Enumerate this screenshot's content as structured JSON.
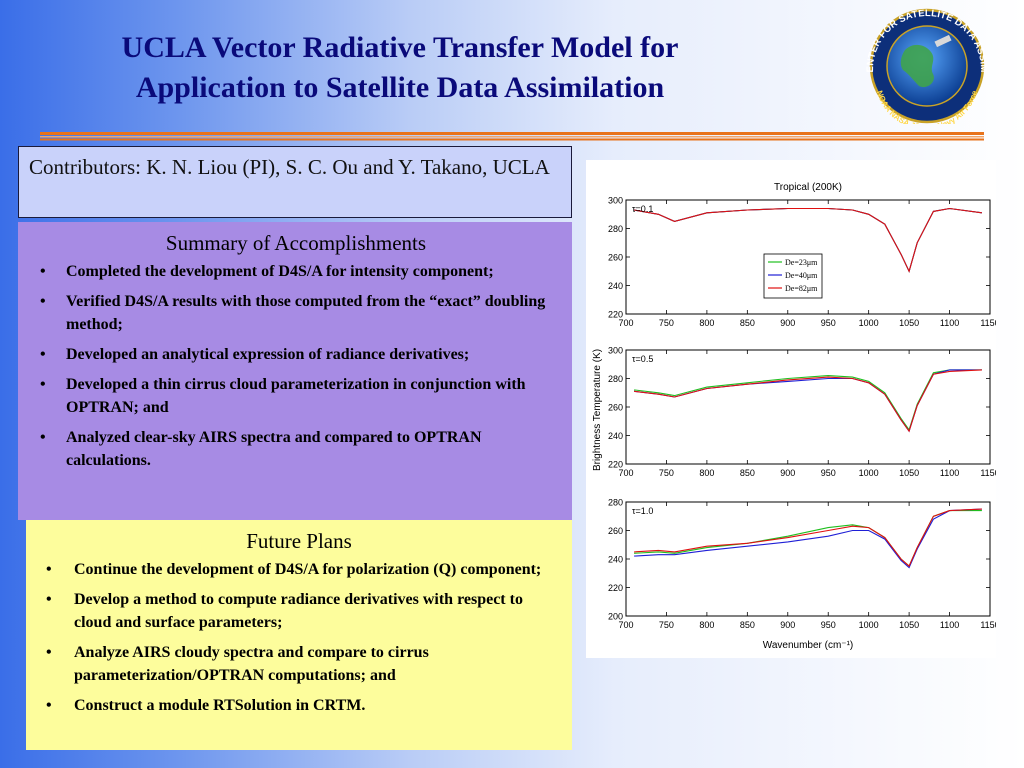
{
  "slide": {
    "title_line1": "UCLA Vector Radiative Transfer Model for",
    "title_line2": "Application to Satellite Data Assimilation",
    "contributors": "Contributors: K. N. Liou (PI), S. C. Ou and Y. Takano, UCLA"
  },
  "logo": {
    "ring_text": "JOINT CENTER FOR SATELLITE DATA ASSIMILATION",
    "bottom_text": "NOAA  NASA  JCSDA  Navy  Air Force"
  },
  "summary": {
    "heading": "Summary of Accomplishments",
    "items": [
      "Completed the development of  D4S/A for intensity component;",
      "Verified D4S/A results with those computed from the “exact” doubling method;",
      "Developed an analytical expression of radiance derivatives;",
      "Developed a thin cirrus cloud parameterization in conjunction with OPTRAN; and",
      "Analyzed clear-sky AIRS spectra and compared to OPTRAN calculations."
    ]
  },
  "future": {
    "heading": "Future Plans",
    "items": [
      "Continue the development of D4S/A for polarization (Q) component;",
      "Develop a  method to compute radiance derivatives with respect to cloud and surface parameters;",
      "Analyze AIRS cloudy spectra and compare to cirrus parameterization/OPTRAN computations; and",
      "Construct a module RTSolution in CRTM."
    ]
  },
  "colors": {
    "title": "#0a0a7a",
    "rule_orange": "#e8731c",
    "contrib_bg": "#c9d2fa",
    "summary_bg": "#a78be4",
    "future_bg": "#fdfd9c",
    "series": [
      "#1fbf1f",
      "#1f1fd6",
      "#e01010"
    ]
  },
  "chart_data": {
    "type": "line",
    "title": "Tropical (200K)",
    "xlabel": "Wavenumber  (cm⁻¹)",
    "ylabel": "Brightness Temperature (K)",
    "xlim": [
      700,
      1150
    ],
    "xticks": [
      700,
      750,
      800,
      850,
      900,
      950,
      1000,
      1050,
      1100,
      1150
    ],
    "legend": {
      "placement": "center",
      "entries": [
        "De=23μm",
        "De=40μm",
        "De=82μm"
      ]
    },
    "panels": [
      {
        "label": "τ=0.1",
        "ylim": [
          220,
          300
        ],
        "yticks": [
          220,
          240,
          260,
          280,
          300
        ],
        "show_legend": true,
        "series": [
          {
            "name": "De=23μm",
            "x": [
              710,
              740,
              760,
              800,
              850,
              900,
              950,
              980,
              1000,
              1020,
              1040,
              1050,
              1060,
              1080,
              1100,
              1140
            ],
            "y": [
              293,
              290,
              285,
              291,
              293,
              294,
              294,
              293,
              290,
              283,
              262,
              250,
              270,
              292,
              294,
              291
            ]
          },
          {
            "name": "De=40μm",
            "x": [
              710,
              740,
              760,
              800,
              850,
              900,
              950,
              980,
              1000,
              1020,
              1040,
              1050,
              1060,
              1080,
              1100,
              1140
            ],
            "y": [
              293,
              290,
              285,
              291,
              293,
              294,
              294,
              293,
              290,
              283,
              262,
              250,
              270,
              292,
              294,
              291
            ]
          },
          {
            "name": "De=82μm",
            "x": [
              710,
              740,
              760,
              800,
              850,
              900,
              950,
              980,
              1000,
              1020,
              1040,
              1050,
              1060,
              1080,
              1100,
              1140
            ],
            "y": [
              293,
              290,
              285,
              291,
              293,
              294,
              294,
              293,
              290,
              283,
              262,
              250,
              270,
              292,
              294,
              291
            ]
          }
        ]
      },
      {
        "label": "τ=0.5",
        "ylim": [
          220,
          300
        ],
        "yticks": [
          220,
          240,
          260,
          280,
          300
        ],
        "show_legend": false,
        "series": [
          {
            "name": "De=23μm",
            "x": [
              710,
              740,
              760,
              800,
              850,
              900,
              950,
              980,
              1000,
              1020,
              1040,
              1050,
              1060,
              1080,
              1100,
              1140
            ],
            "y": [
              272,
              270,
              268,
              274,
              277,
              280,
              282,
              281,
              278,
              270,
              252,
              244,
              262,
              284,
              286,
              286
            ]
          },
          {
            "name": "De=40μm",
            "x": [
              710,
              740,
              760,
              800,
              850,
              900,
              950,
              980,
              1000,
              1020,
              1040,
              1050,
              1060,
              1080,
              1100,
              1140
            ],
            "y": [
              271,
              269,
              267,
              273,
              276,
              278,
              280,
              280,
              277,
              269,
              251,
              243,
              261,
              283,
              286,
              286
            ]
          },
          {
            "name": "De=82μm",
            "x": [
              710,
              740,
              760,
              800,
              850,
              900,
              950,
              980,
              1000,
              1020,
              1040,
              1050,
              1060,
              1080,
              1100,
              1140
            ],
            "y": [
              271,
              269,
              267,
              273,
              276,
              279,
              281,
              280,
              277,
              269,
              251,
              243,
              261,
              283,
              285,
              286
            ]
          }
        ]
      },
      {
        "label": "τ=1.0",
        "ylim": [
          200,
          280
        ],
        "yticks": [
          200,
          220,
          240,
          260,
          280
        ],
        "show_legend": false,
        "series": [
          {
            "name": "De=23μm",
            "x": [
              710,
              740,
              760,
              800,
              850,
              900,
              950,
              980,
              1000,
              1020,
              1040,
              1050,
              1060,
              1080,
              1100,
              1140
            ],
            "y": [
              244,
              245,
              244,
              248,
              251,
              256,
              262,
              264,
              262,
              255,
              240,
              235,
              248,
              270,
              274,
              274
            ]
          },
          {
            "name": "De=40μm",
            "x": [
              710,
              740,
              760,
              800,
              850,
              900,
              950,
              980,
              1000,
              1020,
              1040,
              1050,
              1060,
              1080,
              1100,
              1140
            ],
            "y": [
              242,
              243,
              243,
              246,
              249,
              252,
              256,
              260,
              260,
              254,
              239,
              234,
              247,
              268,
              274,
              275
            ]
          },
          {
            "name": "De=82μm",
            "x": [
              710,
              740,
              760,
              800,
              850,
              900,
              950,
              980,
              1000,
              1020,
              1040,
              1050,
              1060,
              1080,
              1100,
              1140
            ],
            "y": [
              245,
              246,
              245,
              249,
              251,
              255,
              260,
              263,
              262,
              255,
              240,
              235,
              248,
              270,
              274,
              275
            ]
          }
        ]
      }
    ]
  }
}
